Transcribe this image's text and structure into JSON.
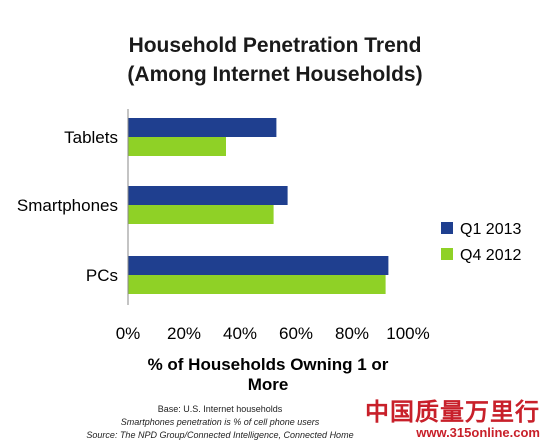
{
  "chart_data": {
    "type": "bar",
    "orientation": "horizontal",
    "title_line1": "Household Penetration Trend",
    "title_line2": "(Among Internet Households)",
    "categories": [
      "Tablets",
      "Smartphones",
      "PCs"
    ],
    "series": [
      {
        "name": "Q1 2013",
        "color": "#1f3f8f",
        "values": [
          53,
          57,
          93
        ]
      },
      {
        "name": "Q4 2012",
        "color": "#8fd126",
        "values": [
          35,
          52,
          92
        ]
      }
    ],
    "xlabel": "% of Households Owning 1 or More",
    "xticks": [
      "0%",
      "20%",
      "40%",
      "60%",
      "80%",
      "100%"
    ],
    "xlim": [
      0,
      100
    ],
    "grid": false,
    "legend_position": "right"
  },
  "footnotes": {
    "base": "Base: U.S. Internet households",
    "note": "Smartphones penetration is % of cell phone users",
    "source": "Source: The NPD Group/Connected Intelligence, Connected Home"
  },
  "watermark": {
    "chinese": "中国质量万里行",
    "url": "www.315online.com"
  }
}
